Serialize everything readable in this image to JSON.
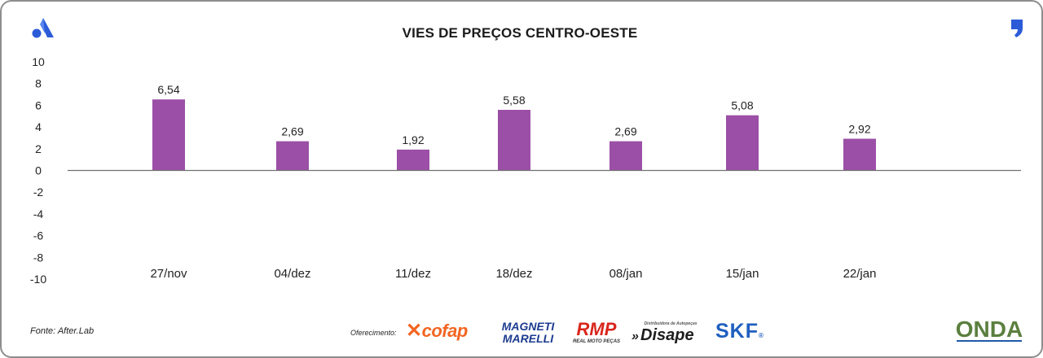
{
  "chart_data": {
    "type": "bar",
    "title": "VIES DE PREÇOS CENTRO-OESTE",
    "categories": [
      "27/nov",
      "04/dez",
      "11/dez",
      "18/dez",
      "08/jan",
      "15/jan",
      "22/jan"
    ],
    "values": [
      6.54,
      2.69,
      1.92,
      5.58,
      2.69,
      5.08,
      2.92
    ],
    "value_labels": [
      "6,54",
      "2,69",
      "1,92",
      "5,58",
      "2,69",
      "5,08",
      "2,92"
    ],
    "ylim": [
      -10,
      10
    ],
    "yticks": [
      "10",
      "8",
      "6",
      "4",
      "2",
      "0",
      "-2",
      "-4",
      "-6",
      "-8",
      "-10"
    ],
    "ytick_values": [
      10,
      8,
      6,
      4,
      2,
      0,
      -2,
      -4,
      -6,
      -8,
      -10
    ],
    "xlabel": "",
    "ylabel": "",
    "grid": false,
    "legend": "none",
    "bar_color": "#9b4fa6"
  },
  "footer": {
    "source": "Fonte: After.Lab",
    "sponsor_label": "Oferecimento:",
    "sponsors": {
      "cofap": "cofap",
      "magneti_1": "MAGNETI",
      "magneti_2": "MARELLI",
      "rmp": "RMP",
      "rmp_sub": "REAL MOTO PEÇAS",
      "disape_sub": "Distribuidora de Autopeças",
      "disape": "Disape",
      "skf": "SKF",
      "onda": "ONDA"
    }
  },
  "colors": {
    "brand_blue": "#2c5bd8",
    "axis": "#707070",
    "onda_green": "#5b7f3e",
    "onda_blue": "#1f5aa8"
  }
}
